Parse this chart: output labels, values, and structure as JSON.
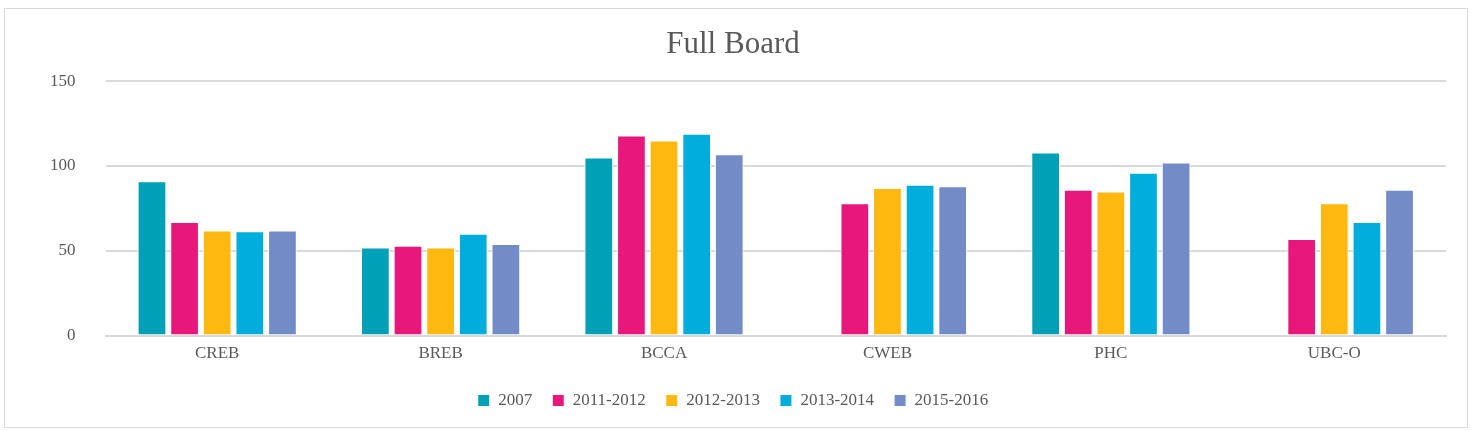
{
  "chart_data": {
    "type": "bar",
    "title": "Full Board",
    "categories": [
      "CREB",
      "BREB",
      "BCCA",
      "CWEB",
      "PHC",
      "UBC-O"
    ],
    "series": [
      {
        "name": "2007",
        "color": "#00a0b6",
        "values": [
          91,
          52,
          105,
          null,
          108,
          null
        ]
      },
      {
        "name": "2011-2012",
        "color": "#e8177c",
        "values": [
          67,
          53,
          118,
          78,
          86,
          57
        ]
      },
      {
        "name": "2012-2013",
        "color": "#feb80f",
        "values": [
          62,
          52,
          115,
          87,
          85,
          78
        ]
      },
      {
        "name": "2013-2014",
        "color": "#00addc",
        "values": [
          61.5,
          60,
          119,
          89,
          96,
          67
        ]
      },
      {
        "name": "2015-2016",
        "color": "#738cc8",
        "values": [
          62,
          54,
          107,
          88,
          102,
          86
        ]
      }
    ],
    "ylim": [
      0,
      150
    ],
    "yticks": [
      0,
      50,
      100,
      150
    ],
    "grid": "y",
    "legend": "bottom"
  }
}
